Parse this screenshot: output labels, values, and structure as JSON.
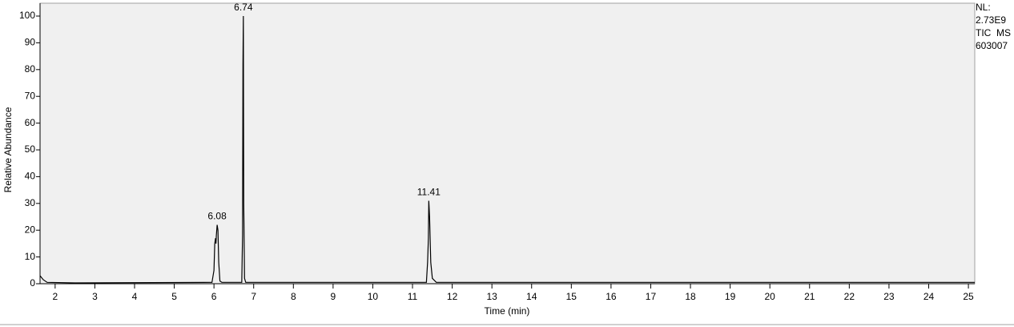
{
  "chart_data": {
    "type": "line",
    "x_label": "Time (min)",
    "y_label": "Relative Abundance",
    "side_notes": [
      "NL:",
      "2.73E9",
      "TIC  MS",
      "603007"
    ],
    "xlim": [
      1.62,
      25.16
    ],
    "ylim": [
      0,
      104.8
    ],
    "xticks": [
      2,
      3,
      4,
      5,
      6,
      7,
      8,
      9,
      10,
      11,
      12,
      13,
      14,
      15,
      16,
      17,
      18,
      19,
      20,
      21,
      22,
      23,
      24,
      25
    ],
    "yticks": [
      0,
      10,
      20,
      30,
      40,
      50,
      60,
      70,
      80,
      90,
      100
    ],
    "series": [
      {
        "color": "#000000",
        "x": [
          1.62,
          1.7,
          1.8,
          2.5,
          5.95,
          6.0,
          6.02,
          6.04,
          6.05,
          6.06,
          6.08,
          6.1,
          6.12,
          6.15,
          6.2,
          6.7,
          6.72,
          6.73,
          6.74,
          6.75,
          6.77,
          6.8,
          11.35,
          11.38,
          11.4,
          11.41,
          11.43,
          11.46,
          11.5,
          11.6,
          25.16
        ],
        "values": [
          3,
          1.5,
          0.5,
          0.3,
          0.5,
          5,
          15,
          17,
          15,
          18,
          22,
          20,
          8,
          1,
          0.5,
          0.5,
          18,
          82,
          100,
          30,
          2,
          0.5,
          0.5,
          8,
          17,
          31,
          25,
          8,
          2,
          0.5,
          0.5
        ]
      }
    ],
    "annotations": [
      {
        "x": 6.08,
        "y": 22
      },
      {
        "x": 6.74,
        "y": 100
      },
      {
        "x": 11.41,
        "y": 31
      }
    ]
  }
}
